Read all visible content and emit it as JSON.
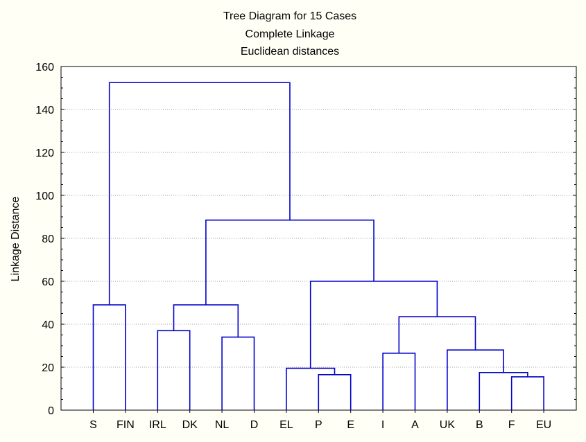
{
  "chart_data": {
    "type": "dendrogram",
    "title": [
      "Tree Diagram for 15 Cases",
      "Complete Linkage",
      "Euclidean distances"
    ],
    "ylabel": "Linkage Distance",
    "xlabel": "",
    "ylim": [
      0,
      160
    ],
    "yticks": [
      0,
      20,
      40,
      60,
      80,
      100,
      120,
      140,
      160
    ],
    "grid": true,
    "leaves": [
      "S",
      "FIN",
      "IRL",
      "DK",
      "NL",
      "D",
      "EL",
      "P",
      "E",
      "I",
      "A",
      "UK",
      "B",
      "F",
      "EU"
    ],
    "merges": [
      {
        "left": "F",
        "right": "EU",
        "height": 15.5
      },
      {
        "left": "P",
        "right": "E",
        "height": 16.5
      },
      {
        "left": "B",
        "right": "F+EU",
        "height": 17.5
      },
      {
        "left": "EL",
        "right": "P+E",
        "height": 19.5
      },
      {
        "left": "I",
        "right": "A",
        "height": 26.5
      },
      {
        "left": "UK",
        "right": "B+F+EU",
        "height": 28
      },
      {
        "left": "NL",
        "right": "D",
        "height": 34
      },
      {
        "left": "IRL",
        "right": "DK",
        "height": 37
      },
      {
        "left": "I+A",
        "right": "UK+B+F+EU",
        "height": 43.5
      },
      {
        "left": "S",
        "right": "FIN",
        "height": 49
      },
      {
        "left": "IRL+DK",
        "right": "NL+D",
        "height": 49
      },
      {
        "left": "EL+P+E",
        "right": "I+A+UK+B+F+EU",
        "height": 60
      },
      {
        "left": "IRL+DK+NL+D",
        "right": "EL+P+E+I+A+UK+B+F+EU",
        "height": 88.5
      },
      {
        "left": "S+FIN",
        "right": "IRL+DK+NL+D+EL+P+E+I+A+UK+B+F+EU",
        "height": 152.5
      }
    ]
  }
}
